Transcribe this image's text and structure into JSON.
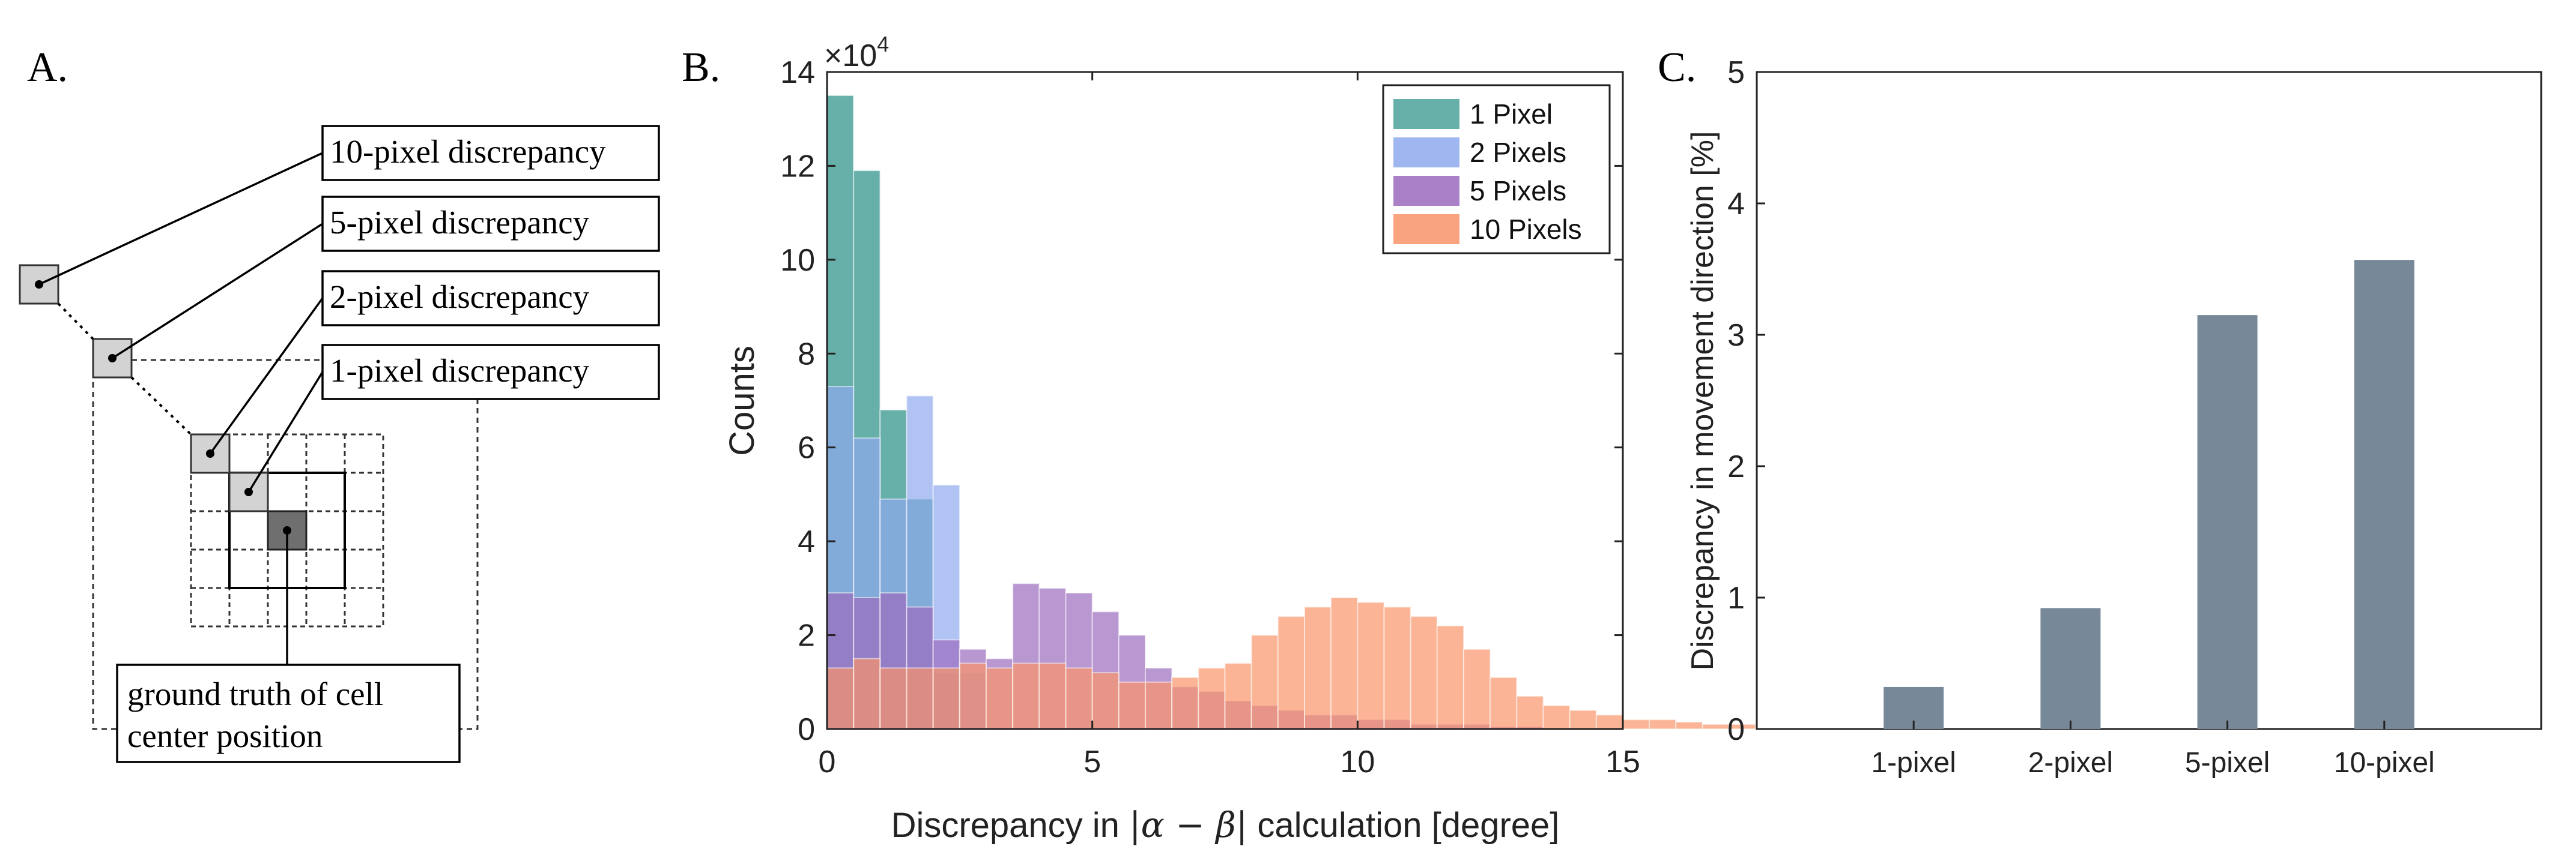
{
  "panel_a": {
    "label": "A.",
    "callouts": [
      "10-pixel discrepancy",
      "5-pixel discrepancy",
      "2-pixel discrepancy",
      "1-pixel discrepancy"
    ],
    "ground_truth_lines": [
      "ground truth of cell",
      "center position"
    ]
  },
  "chart_data": [
    {
      "panel": "B.",
      "type": "bar",
      "subtype": "overlaid-histogram",
      "xlabel_prefix": "Discrepancy in ",
      "xlabel_math": "|α − β|",
      "xlabel_suffix": " calculation [degree]",
      "ylabel": "Counts",
      "exponent_label": "×10",
      "exponent_power": "4",
      "xlim": [
        0,
        15
      ],
      "ylim": [
        0,
        14
      ],
      "bin_width": 0.5,
      "xticks": [
        0,
        5,
        10,
        15
      ],
      "yticks": [
        0,
        2,
        4,
        6,
        8,
        10,
        12,
        14
      ],
      "legend_position": "top-right",
      "series": [
        {
          "name": "1 Pixel",
          "color": "#5FABA4",
          "values": [
            13.5,
            11.9,
            6.8,
            4.9,
            1.2
          ]
        },
        {
          "name": "2 Pixels",
          "color": "#8EA9EE",
          "values": [
            7.3,
            6.2,
            4.9,
            7.1,
            5.2,
            1.2
          ]
        },
        {
          "name": "5 Pixels",
          "color": "#9B6BBE",
          "values": [
            2.9,
            2.8,
            2.9,
            2.6,
            1.9,
            1.7,
            1.5,
            3.1,
            3.0,
            2.9,
            2.5,
            2.0,
            1.3,
            0.9,
            0.8,
            0.6,
            0.5,
            0.4,
            0.3,
            0.3,
            0.2,
            0.2,
            0.1,
            0.1,
            0.1,
            0.05,
            0.05,
            0.0
          ]
        },
        {
          "name": "10 Pixels",
          "color": "#F99469",
          "values": [
            1.3,
            1.5,
            1.3,
            1.3,
            1.3,
            1.4,
            1.3,
            1.4,
            1.4,
            1.3,
            1.2,
            1.0,
            1.0,
            1.1,
            1.3,
            1.4,
            2.0,
            2.4,
            2.6,
            2.8,
            2.7,
            2.6,
            2.4,
            2.2,
            1.7,
            1.1,
            0.7,
            0.5,
            0.4,
            0.3,
            0.2,
            0.2,
            0.15,
            0.1,
            0.1,
            0.1,
            0.05,
            0.03
          ]
        }
      ]
    },
    {
      "panel": "C.",
      "type": "bar",
      "ylabel": "Discrepancy in movement direction [%]",
      "categories": [
        "1-pixel",
        "2-pixel",
        "5-pixel",
        "10-pixel"
      ],
      "values": [
        0.32,
        0.92,
        3.15,
        3.57
      ],
      "color": "#778899",
      "ylim": [
        0,
        5
      ],
      "yticks": [
        0,
        1,
        2,
        3,
        4,
        5
      ]
    }
  ]
}
